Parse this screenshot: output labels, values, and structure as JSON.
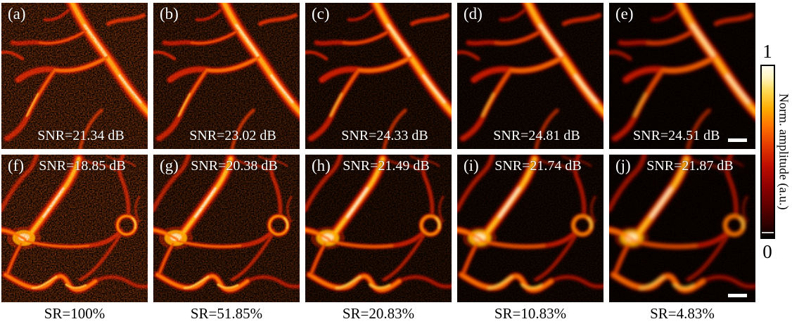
{
  "figure": {
    "description": "Photoacoustic vascular images at different sampling rates",
    "panels": [
      {
        "label": "(a)",
        "snr": "SNR=21.34 dB"
      },
      {
        "label": "(b)",
        "snr": "SNR=23.02 dB"
      },
      {
        "label": "(c)",
        "snr": "SNR=24.33 dB"
      },
      {
        "label": "(d)",
        "snr": "SNR=24.81 dB"
      },
      {
        "label": "(e)",
        "snr": "SNR=24.51 dB",
        "scalebar": true
      },
      {
        "label": "(f)",
        "snr": "SNR=18.85 dB",
        "sr": "SR=100%"
      },
      {
        "label": "(g)",
        "snr": "SNR=20.38 dB",
        "sr": "SR=51.85%"
      },
      {
        "label": "(h)",
        "snr": "SNR=21.49 dB",
        "sr": "SR=20.83%"
      },
      {
        "label": "(i)",
        "snr": "SNR=21.74 dB",
        "sr": "SR=10.83%"
      },
      {
        "label": "(j)",
        "snr": "SNR=21.87 dB",
        "sr": "SR=4.83%",
        "scalebar": true
      }
    ],
    "colorbar": {
      "max": "1",
      "min": "0",
      "label": "Norm. amplitude (a.u.)",
      "colormap": "hot"
    },
    "colors": {
      "page_background": "#ffffff",
      "panel_background": "#020000",
      "annotation_text_on_image": "#ffffff",
      "caption_text": "#000000"
    }
  }
}
